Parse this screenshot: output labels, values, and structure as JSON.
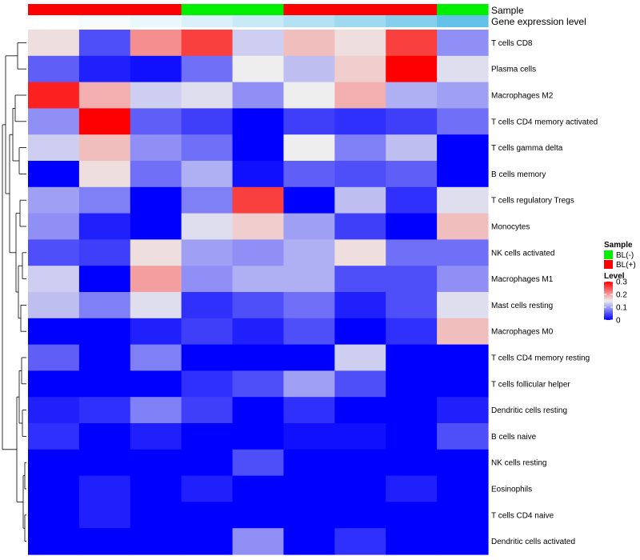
{
  "chart_data": {
    "type": "heatmap",
    "title": "",
    "rows": [
      "T cells CD8",
      "Plasma cells",
      "Macrophages M2",
      "T cells CD4 memory activated",
      "T cells gamma delta",
      "B cells memory",
      "T cells regulatory  Tregs",
      "Monocytes",
      "NK cells activated",
      "Macrophages M1",
      "Mast cells resting",
      "Macrophages M0",
      "T cells CD4 memory resting",
      "T cells follicular helper",
      "Dendritic cells resting",
      "B cells naive",
      "NK cells resting",
      "Eosinophils",
      "T cells CD4 naive",
      "Dendritic cells activated"
    ],
    "values": [
      [
        0.16,
        0.05,
        0.21,
        0.26,
        0.13,
        0.18,
        0.16,
        0.26,
        0.09
      ],
      [
        0.06,
        0.02,
        0.01,
        0.07,
        0.15,
        0.12,
        0.17,
        0.3,
        0.14
      ],
      [
        0.28,
        0.19,
        0.13,
        0.14,
        0.09,
        0.15,
        0.19,
        0.11,
        0.1
      ],
      [
        0.09,
        0.3,
        0.06,
        0.04,
        0.0,
        0.04,
        0.03,
        0.04,
        0.07
      ],
      [
        0.13,
        0.18,
        0.09,
        0.07,
        0.0,
        0.15,
        0.08,
        0.12,
        0.0
      ],
      [
        0.0,
        0.16,
        0.07,
        0.11,
        0.01,
        0.06,
        0.05,
        0.06,
        0.0
      ],
      [
        0.1,
        0.08,
        0.0,
        0.08,
        0.26,
        0.0,
        0.12,
        0.03,
        0.14
      ],
      [
        0.09,
        0.02,
        0.0,
        0.14,
        0.17,
        0.1,
        0.04,
        0.0,
        0.18
      ],
      [
        0.05,
        0.04,
        0.16,
        0.1,
        0.09,
        0.11,
        0.16,
        0.07,
        0.07
      ],
      [
        0.13,
        0.0,
        0.2,
        0.09,
        0.11,
        0.11,
        0.05,
        0.05,
        0.09
      ],
      [
        0.12,
        0.08,
        0.14,
        0.03,
        0.05,
        0.07,
        0.02,
        0.05,
        0.14
      ],
      [
        0.0,
        0.0,
        0.02,
        0.04,
        0.02,
        0.05,
        0.0,
        0.03,
        0.18
      ],
      [
        0.06,
        0.0,
        0.08,
        0.0,
        0.0,
        0.0,
        0.13,
        0.0,
        0.0
      ],
      [
        0.0,
        0.0,
        0.0,
        0.03,
        0.05,
        0.1,
        0.05,
        0.0,
        0.0
      ],
      [
        0.02,
        0.03,
        0.08,
        0.04,
        0.0,
        0.03,
        0.0,
        0.0,
        0.02
      ],
      [
        0.03,
        0.0,
        0.02,
        0.0,
        0.0,
        0.01,
        0.01,
        0.0,
        0.05
      ],
      [
        0.0,
        0.0,
        0.0,
        0.0,
        0.05,
        0.0,
        0.0,
        0.0,
        0.0
      ],
      [
        0.0,
        0.02,
        0.0,
        0.02,
        0.0,
        0.0,
        0.0,
        0.02,
        0.0
      ],
      [
        0.0,
        0.02,
        0.0,
        0.0,
        0.0,
        0.0,
        0.0,
        0.0,
        0.0
      ],
      [
        0.0,
        0.0,
        0.0,
        0.0,
        0.09,
        0.0,
        0.03,
        0.0,
        0.0
      ]
    ],
    "column_annotations": [
      {
        "name": "Sample",
        "values": [
          "BL(+)",
          "BL(+)",
          "BL(+)",
          "BL(-)",
          "BL(-)",
          "BL(+)",
          "BL(+)",
          "BL(+)",
          "BL(-)"
        ]
      },
      {
        "name": "Gene expression level",
        "shades": [
          "#fdfefe",
          "#f5fbfd",
          "#eaf7fb",
          "#dbf1f9",
          "#c8eaf6",
          "#b3e1f3",
          "#9ed9f0",
          "#86cfec",
          "#62c2e8"
        ]
      }
    ],
    "color_scale": {
      "low": "#0000ff",
      "mid": "#eeeeee",
      "high": "#ff0000",
      "min": 0,
      "mid_value": 0.15,
      "max": 0.3
    },
    "legend": {
      "sample": {
        "title": "Sample",
        "items": [
          {
            "label": "BL(-)",
            "color": "#00ee00"
          },
          {
            "label": "BL(+)",
            "color": "#ff0000"
          }
        ]
      },
      "level": {
        "title": "Level",
        "ticks": [
          0.3,
          0.2,
          0.1,
          0
        ],
        "tick_labels": [
          "0.3",
          "0.2",
          "0.1",
          "0"
        ]
      }
    },
    "dendrogram": "rows clustered (hierarchical)"
  }
}
